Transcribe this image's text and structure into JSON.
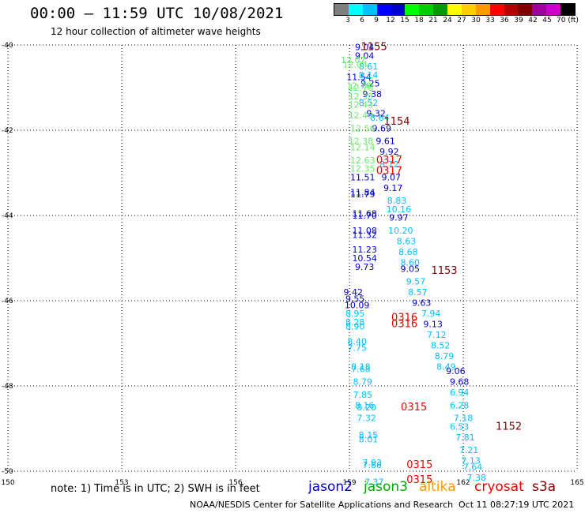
{
  "header": {
    "title": "00:00 – 11:59 UTC 10/08/2021",
    "subtitle": "12 hour collection of altimeter wave heights"
  },
  "color_scale": {
    "labels": [
      "3",
      "6",
      "9",
      "12",
      "15",
      "18",
      "21",
      "24",
      "27",
      "30",
      "33",
      "36",
      "39",
      "42",
      "45",
      "70 (ft)"
    ],
    "colors": [
      "#7f7f7f",
      "#00ffff",
      "#00bfff",
      "#0000ff",
      "#0000cd",
      "#00ff00",
      "#00cd00",
      "#009900",
      "#ffff00",
      "#ffcc00",
      "#ff9900",
      "#ff0000",
      "#b20000",
      "#800000",
      "#a000a0",
      "#cc00cc",
      "#000000"
    ]
  },
  "footer": {
    "note": "note:  1) Time is in UTC;  2) SWH is in feet",
    "credit": "NOAA/NESDIS Center for Satellite Applications and Research",
    "generated": "Oct 11 08:27:19 UTC 2021"
  },
  "satellites": [
    {
      "name": "jason2",
      "color": "#0000cc"
    },
    {
      "name": "jason3",
      "color": "#00aa00"
    },
    {
      "name": "altika",
      "color": "#ff9900"
    },
    {
      "name": "cryosat",
      "color": "#ee0000"
    },
    {
      "name": "s3a",
      "color": "#800000"
    }
  ],
  "chart_data": {
    "type": "scatter",
    "xlim": [
      150,
      165
    ],
    "ylim": [
      -50,
      -40
    ],
    "x_ticks": [
      150,
      153,
      156,
      159,
      162,
      165
    ],
    "x_tick_labels": [
      "150",
      "153",
      "156",
      "159",
      "162",
      "165"
    ],
    "y_ticks": [
      -40,
      -42,
      -44,
      -46,
      -48,
      -50
    ],
    "y_tick_labels": [
      "-40",
      "-42",
      "-44",
      "-46",
      "-48",
      "-50"
    ],
    "grid": true,
    "series": [
      {
        "color": "#0000cc",
        "points": [
          {
            "x": 159.4,
            "y": -40.05,
            "label": "9.04"
          },
          {
            "x": 159.4,
            "y": -40.25,
            "label": "9.04"
          },
          {
            "x": 159.25,
            "y": -40.75,
            "label": "11.54"
          },
          {
            "x": 159.55,
            "y": -40.9,
            "label": "9.25"
          },
          {
            "x": 159.6,
            "y": -41.15,
            "label": "9.38"
          },
          {
            "x": 159.7,
            "y": -41.6,
            "label": "9.32"
          },
          {
            "x": 159.85,
            "y": -41.95,
            "label": "9.69"
          },
          {
            "x": 159.95,
            "y": -42.25,
            "label": "9.61"
          },
          {
            "x": 160.05,
            "y": -42.5,
            "label": "9.92"
          },
          {
            "x": 160.1,
            "y": -43.1,
            "label": "9.07"
          },
          {
            "x": 160.15,
            "y": -43.35,
            "label": "9.17"
          },
          {
            "x": 159.35,
            "y": -43.1,
            "label": "11.51"
          },
          {
            "x": 159.35,
            "y": -43.45,
            "label": "11.84"
          },
          {
            "x": 159.35,
            "y": -43.5,
            "label": "11.79"
          },
          {
            "x": 159.4,
            "y": -43.95,
            "label": "11.68"
          },
          {
            "x": 159.4,
            "y": -44.0,
            "label": "11.70"
          },
          {
            "x": 160.3,
            "y": -44.05,
            "label": "9.97"
          },
          {
            "x": 159.4,
            "y": -44.35,
            "label": "11.08"
          },
          {
            "x": 159.4,
            "y": -44.45,
            "label": "11.32"
          },
          {
            "x": 159.4,
            "y": -44.8,
            "label": "11.23"
          },
          {
            "x": 159.4,
            "y": -45.0,
            "label": "10.54"
          },
          {
            "x": 159.4,
            "y": -45.2,
            "label": "9.73"
          },
          {
            "x": 160.6,
            "y": -45.25,
            "label": "9.05"
          },
          {
            "x": 159.1,
            "y": -45.8,
            "label": "9.42"
          },
          {
            "x": 159.15,
            "y": -45.95,
            "label": "9.55"
          },
          {
            "x": 159.2,
            "y": -46.1,
            "label": "10.09"
          },
          {
            "x": 160.9,
            "y": -46.05,
            "label": "9.63"
          },
          {
            "x": 161.2,
            "y": -46.55,
            "label": "9.13"
          },
          {
            "x": 161.8,
            "y": -47.65,
            "label": "9.06"
          },
          {
            "x": 161.9,
            "y": -47.9,
            "label": "9.68"
          }
        ]
      },
      {
        "color": "#00bfff",
        "points": [
          {
            "x": 159.5,
            "y": -40.5,
            "label": "8.61"
          },
          {
            "x": 159.5,
            "y": -40.7,
            "label": "8.14"
          },
          {
            "x": 159.5,
            "y": -41.35,
            "label": "8.52"
          },
          {
            "x": 159.8,
            "y": -41.7,
            "label": "8.64"
          },
          {
            "x": 160.05,
            "y": -42.8,
            "label": "8.72"
          },
          {
            "x": 160.25,
            "y": -43.65,
            "label": "8.83"
          },
          {
            "x": 160.3,
            "y": -43.85,
            "label": "10.16"
          },
          {
            "x": 160.35,
            "y": -44.35,
            "label": "10.20"
          },
          {
            "x": 160.5,
            "y": -44.6,
            "label": "8.63"
          },
          {
            "x": 160.55,
            "y": -44.85,
            "label": "8.68"
          },
          {
            "x": 160.6,
            "y": -45.1,
            "label": "8.60"
          },
          {
            "x": 160.75,
            "y": -45.55,
            "label": "9.57"
          },
          {
            "x": 160.8,
            "y": -45.8,
            "label": "8.57"
          },
          {
            "x": 159.15,
            "y": -46.3,
            "label": "8.95"
          },
          {
            "x": 161.15,
            "y": -46.3,
            "label": "7.94"
          },
          {
            "x": 159.15,
            "y": -46.5,
            "label": "8.28"
          },
          {
            "x": 159.15,
            "y": -46.6,
            "label": "8.90"
          },
          {
            "x": 161.3,
            "y": -46.8,
            "label": "7.12"
          },
          {
            "x": 159.2,
            "y": -46.95,
            "label": "8.40"
          },
          {
            "x": 161.4,
            "y": -47.05,
            "label": "8.52"
          },
          {
            "x": 159.2,
            "y": -47.1,
            "label": "7.75"
          },
          {
            "x": 161.5,
            "y": -47.3,
            "label": "8.79"
          },
          {
            "x": 159.3,
            "y": -47.55,
            "label": "8.18"
          },
          {
            "x": 161.55,
            "y": -47.55,
            "label": "8.49"
          },
          {
            "x": 159.3,
            "y": -47.6,
            "label": "7.68"
          },
          {
            "x": 159.35,
            "y": -47.9,
            "label": "8.79"
          },
          {
            "x": 161.9,
            "y": -48.15,
            "label": "6.94"
          },
          {
            "x": 159.35,
            "y": -48.2,
            "label": "7.85"
          },
          {
            "x": 159.4,
            "y": -48.45,
            "label": "8.16"
          },
          {
            "x": 159.45,
            "y": -48.5,
            "label": "8.20"
          },
          {
            "x": 161.9,
            "y": -48.45,
            "label": "6.28"
          },
          {
            "x": 159.45,
            "y": -48.75,
            "label": "7.32"
          },
          {
            "x": 162.0,
            "y": -48.75,
            "label": "7.18"
          },
          {
            "x": 161.9,
            "y": -48.95,
            "label": "6.53"
          },
          {
            "x": 162.05,
            "y": -49.2,
            "label": "7.81"
          },
          {
            "x": 159.5,
            "y": -49.15,
            "label": "8.15"
          },
          {
            "x": 159.5,
            "y": -49.25,
            "label": "8.01"
          },
          {
            "x": 162.15,
            "y": -49.5,
            "label": "7.21"
          },
          {
            "x": 162.2,
            "y": -49.75,
            "label": "7.13"
          },
          {
            "x": 159.6,
            "y": -49.8,
            "label": "7.93"
          },
          {
            "x": 159.6,
            "y": -49.85,
            "label": "7.86"
          },
          {
            "x": 162.25,
            "y": -49.9,
            "label": "7.64"
          },
          {
            "x": 162.35,
            "y": -50.15,
            "label": "7.38"
          },
          {
            "x": 159.65,
            "y": -50.25,
            "label": "7.37"
          }
        ]
      },
      {
        "color": "#66ee66",
        "points": [
          {
            "x": 159.1,
            "y": -40.35,
            "label": "12.07"
          },
          {
            "x": 159.15,
            "y": -40.45,
            "label": "12.04"
          },
          {
            "x": 159.25,
            "y": -40.95,
            "label": "12.78"
          },
          {
            "x": 159.3,
            "y": -41.0,
            "label": "12.70"
          },
          {
            "x": 159.3,
            "y": -41.2,
            "label": "12.38"
          },
          {
            "x": 159.3,
            "y": -41.4,
            "label": "12.43"
          },
          {
            "x": 159.3,
            "y": -41.65,
            "label": "12.43"
          },
          {
            "x": 159.35,
            "y": -41.95,
            "label": "12.56"
          },
          {
            "x": 159.3,
            "y": -42.25,
            "label": "12.38"
          },
          {
            "x": 159.35,
            "y": -42.4,
            "label": "12.14"
          },
          {
            "x": 159.35,
            "y": -42.7,
            "label": "12.63"
          },
          {
            "x": 159.35,
            "y": -42.9,
            "label": "12.35"
          }
        ]
      },
      {
        "color": "#ee0000",
        "points": [
          {
            "x": 160.05,
            "y": -42.7,
            "label": "0317"
          },
          {
            "x": 160.05,
            "y": -42.95,
            "label": "0317"
          },
          {
            "x": 160.45,
            "y": -46.4,
            "label": "0316"
          },
          {
            "x": 160.45,
            "y": -46.55,
            "label": "0316"
          },
          {
            "x": 160.7,
            "y": -48.5,
            "label": "0315"
          },
          {
            "x": 160.85,
            "y": -49.85,
            "label": "0315"
          },
          {
            "x": 160.85,
            "y": -50.2,
            "label": "0315"
          }
        ]
      },
      {
        "color": "#800000",
        "points": [
          {
            "x": 159.65,
            "y": -40.05,
            "label": "1155"
          },
          {
            "x": 160.25,
            "y": -41.8,
            "label": "1154"
          },
          {
            "x": 161.5,
            "y": -45.3,
            "label": "1153"
          },
          {
            "x": 163.2,
            "y": -48.95,
            "label": "1152"
          }
        ]
      }
    ]
  }
}
